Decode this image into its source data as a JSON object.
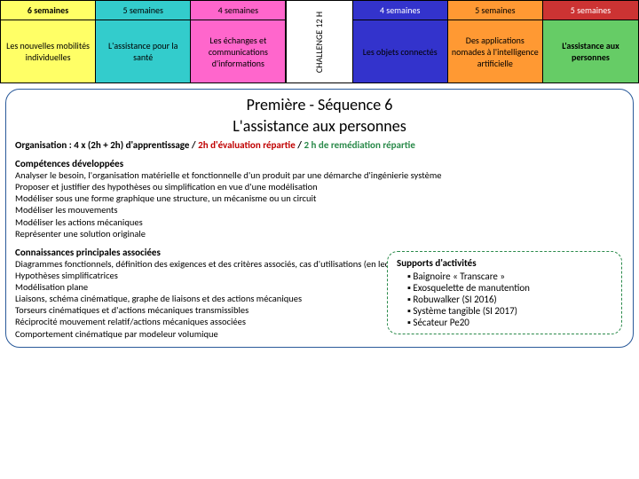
{
  "table": {
    "cols": [
      {
        "hdr": "6 semaines",
        "body": "Les nouvelles mobilités individuelles",
        "hdr_bg": "#ffff66",
        "body_bg": "#ffff66",
        "hdr_bold": true
      },
      {
        "hdr": "5 semaines",
        "body": "L'assistance pour la santé",
        "hdr_bg": "#33cccc",
        "body_bg": "#33cccc"
      },
      {
        "hdr": "4 semaines",
        "body": "Les échanges et communications d'informations",
        "hdr_bg": "#ff66cc",
        "body_bg": "#ff66cc"
      },
      {
        "hdr": "",
        "body": "CHALLENGE 12 H",
        "hdr_bg": "#ffffff",
        "body_bg": "#ffffff",
        "vertical": true
      },
      {
        "hdr": "4 semaines",
        "body": "Les objets connectés",
        "hdr_bg": "#3333cc",
        "body_bg": "#3333cc",
        "hdr_color": "#ffffff"
      },
      {
        "hdr": "5 semaines",
        "body": "Des applications nomades à l'intelligence artificielle",
        "hdr_bg": "#ff9933",
        "body_bg": "#ff9933"
      },
      {
        "hdr": "5 semaines",
        "body": "L'assistance aux personnes",
        "hdr_bg": "#cc3333",
        "body_bg": "#66cc66",
        "hdr_color": "#ffffff",
        "body_bold": true
      }
    ]
  },
  "title1": "Première - Séquence 6",
  "title2": "L'assistance aux personnes",
  "org_prefix": "Organisation : 4 x (2h + 2h) d'apprentissage",
  "org_mid": " / ",
  "org_red": "2h d'évaluation répartie",
  "org_green": "2 h de remédiation répartie",
  "comp_h": "Compétences développées",
  "comp": [
    "Analyser le besoin, l'organisation matérielle et fonctionnelle d'un produit par une démarche d'ingénierie système",
    "Proposer et justifier des hypothèses ou simplification en vue d'une modélisation",
    "Modéliser sous une forme graphique une structure, un mécanisme ou un circuit",
    "Modéliser les mouvements",
    "Modéliser les actions mécaniques",
    "Représenter une solution originale"
  ],
  "conn_h": "Connaissances principales associées",
  "conn": [
    "Diagrammes fonctionnels, définition des exigences et des critères associés, cas d'utilisations (en lecture), analyse structurelle",
    "Hypothèses simplificatrices",
    "Modélisation plane",
    "Liaisons, schéma cinématique, graphe de liaisons et des actions mécaniques",
    "Torseurs cinématiques et d'actions mécaniques transmissibles",
    "Réciprocité mouvement relatif/actions mécaniques associées",
    "Comportement cinématique par modeleur volumique"
  ],
  "supports_h": "Supports d'activités",
  "supports": [
    "Baignoire « Transcare »",
    "Exosquelette de manutention",
    "Robuwalker (SI 2016)",
    "Système tangible (SI 2017)",
    "Sécateur Pe20"
  ]
}
